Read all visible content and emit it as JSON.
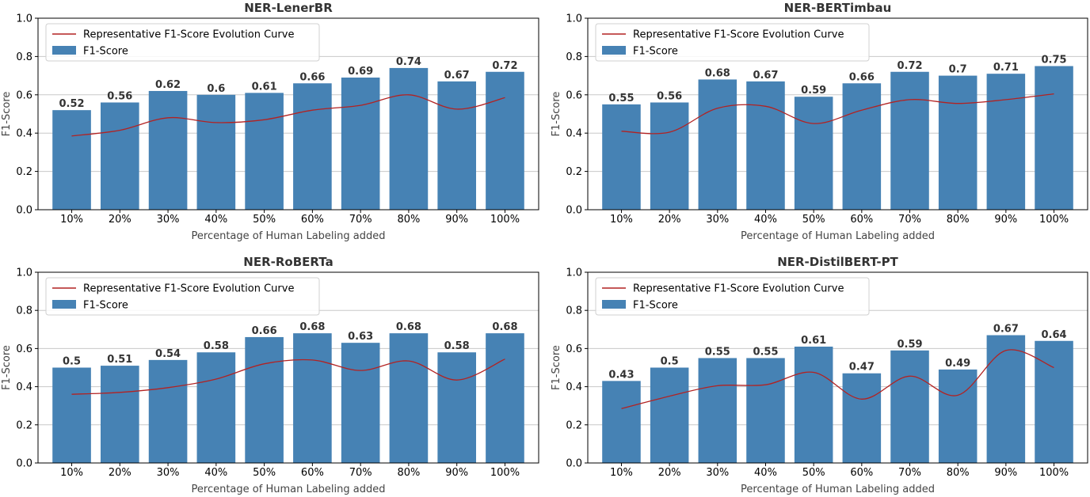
{
  "chart_data": [
    {
      "type": "bar",
      "title": "NER-LenerBR",
      "xlabel": "Percentage of Human Labeling added",
      "ylabel": "F1-Score",
      "ylim": [
        0,
        1.0
      ],
      "yticks": [
        "0.0",
        "0.2",
        "0.4",
        "0.6",
        "0.8",
        "1.0"
      ],
      "categories": [
        "10%",
        "20%",
        "30%",
        "40%",
        "50%",
        "60%",
        "70%",
        "80%",
        "90%",
        "100%"
      ],
      "series": [
        {
          "name": "F1-Score",
          "type": "bar",
          "values": [
            0.52,
            0.56,
            0.62,
            0.6,
            0.61,
            0.66,
            0.69,
            0.74,
            0.67,
            0.72
          ]
        },
        {
          "name": "Representative F1-Score Evolution Curve",
          "type": "line",
          "values": [
            0.385,
            0.415,
            0.48,
            0.455,
            0.47,
            0.52,
            0.545,
            0.6,
            0.525,
            0.585
          ]
        }
      ],
      "legend": "top-left",
      "grid": "y",
      "colors": {
        "bar": "#4682b4",
        "curve": "#b22222"
      }
    },
    {
      "type": "bar",
      "title": "NER-BERTimbau",
      "xlabel": "Percentage of Human Labeling added",
      "ylabel": "F1-Score",
      "ylim": [
        0,
        1.0
      ],
      "yticks": [
        "0.0",
        "0.2",
        "0.4",
        "0.6",
        "0.8",
        "1.0"
      ],
      "categories": [
        "10%",
        "20%",
        "30%",
        "40%",
        "50%",
        "60%",
        "70%",
        "80%",
        "90%",
        "100%"
      ],
      "series": [
        {
          "name": "F1-Score",
          "type": "bar",
          "values": [
            0.55,
            0.56,
            0.68,
            0.67,
            0.59,
            0.66,
            0.72,
            0.7,
            0.71,
            0.75
          ]
        },
        {
          "name": "Representative F1-Score Evolution Curve",
          "type": "line",
          "values": [
            0.41,
            0.405,
            0.53,
            0.54,
            0.45,
            0.52,
            0.575,
            0.555,
            0.575,
            0.605
          ]
        }
      ],
      "legend": "top-left",
      "grid": "y",
      "colors": {
        "bar": "#4682b4",
        "curve": "#b22222"
      }
    },
    {
      "type": "bar",
      "title": "NER-RoBERTa",
      "xlabel": "Percentage of Human Labeling added",
      "ylabel": "F1-Score",
      "ylim": [
        0,
        1.0
      ],
      "yticks": [
        "0.0",
        "0.2",
        "0.4",
        "0.6",
        "0.8",
        "1.0"
      ],
      "categories": [
        "10%",
        "20%",
        "30%",
        "40%",
        "50%",
        "60%",
        "70%",
        "80%",
        "90%",
        "100%"
      ],
      "series": [
        {
          "name": "F1-Score",
          "type": "bar",
          "values": [
            0.5,
            0.51,
            0.54,
            0.58,
            0.66,
            0.68,
            0.63,
            0.68,
            0.58,
            0.68
          ]
        },
        {
          "name": "Representative F1-Score Evolution Curve",
          "type": "line",
          "values": [
            0.36,
            0.37,
            0.395,
            0.44,
            0.52,
            0.54,
            0.485,
            0.535,
            0.435,
            0.545
          ]
        }
      ],
      "legend": "top-left",
      "grid": "y",
      "colors": {
        "bar": "#4682b4",
        "curve": "#b22222"
      }
    },
    {
      "type": "bar",
      "title": "NER-DistilBERT-PT",
      "xlabel": "Percentage of Human Labeling added",
      "ylabel": "F1-Score",
      "ylim": [
        0,
        1.0
      ],
      "yticks": [
        "0.0",
        "0.2",
        "0.4",
        "0.6",
        "0.8",
        "1.0"
      ],
      "categories": [
        "10%",
        "20%",
        "30%",
        "40%",
        "50%",
        "60%",
        "70%",
        "80%",
        "90%",
        "100%"
      ],
      "series": [
        {
          "name": "F1-Score",
          "type": "bar",
          "values": [
            0.43,
            0.5,
            0.55,
            0.55,
            0.61,
            0.47,
            0.59,
            0.49,
            0.67,
            0.64
          ]
        },
        {
          "name": "Representative F1-Score Evolution Curve",
          "type": "line",
          "values": [
            0.285,
            0.35,
            0.405,
            0.41,
            0.475,
            0.335,
            0.455,
            0.355,
            0.59,
            0.5
          ]
        }
      ],
      "legend": "top-left",
      "grid": "y",
      "colors": {
        "bar": "#4682b4",
        "curve": "#b22222"
      }
    }
  ]
}
